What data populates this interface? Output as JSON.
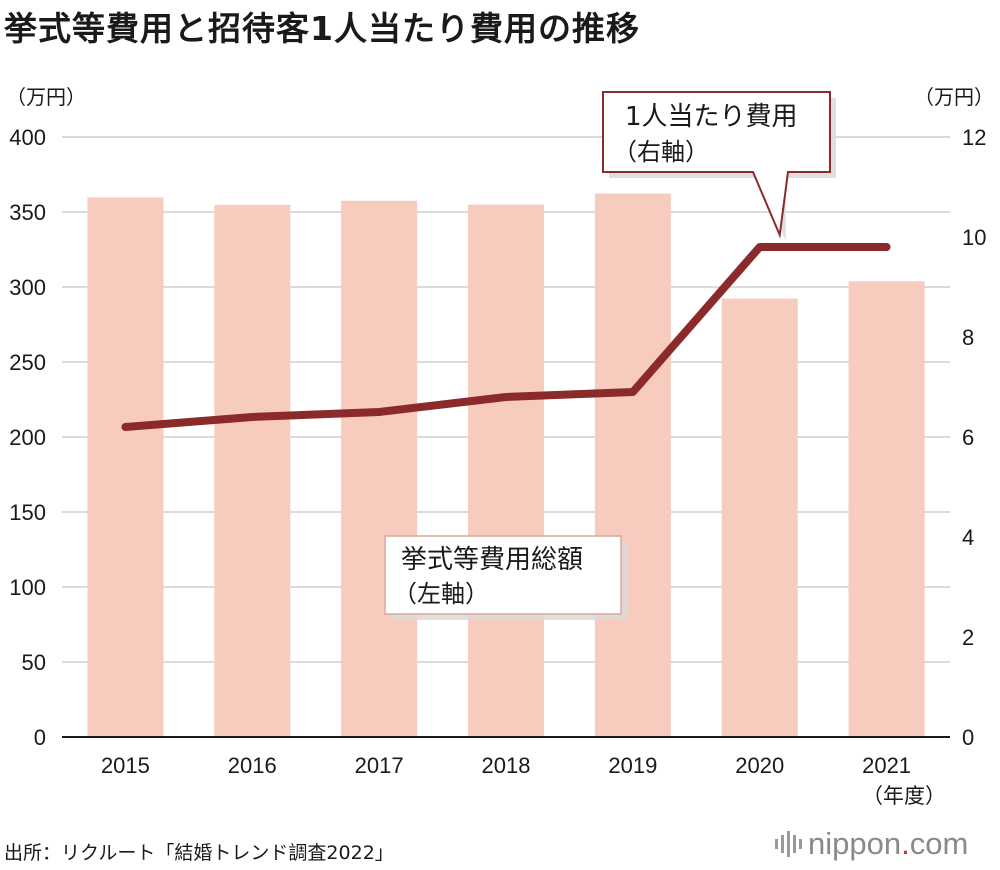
{
  "title": "挙式等費用と招待客1人当たり費用の推移",
  "source": "出所：リクルート「結婚トレンド調査2022」",
  "logo": {
    "name": "nippon",
    "dot": ".",
    "tld": "com"
  },
  "chart_data": {
    "type": "bar+line",
    "categories": [
      "2015",
      "2016",
      "2017",
      "2018",
      "2019",
      "2020",
      "2021"
    ],
    "xlabel": "（年度）",
    "left_axis": {
      "unit": "（万円）",
      "min": 0,
      "max": 400,
      "ticks": [
        0,
        50,
        100,
        150,
        200,
        250,
        300,
        350,
        400
      ]
    },
    "right_axis": {
      "unit": "（万円）",
      "min": 0,
      "max": 12,
      "ticks": [
        0,
        2,
        4,
        6,
        8,
        10,
        12
      ]
    },
    "grid": true,
    "series": [
      {
        "name": "挙式等費用総額",
        "axis_note": "（左軸）",
        "type": "bar",
        "axis": "left",
        "values": [
          359.7,
          354.8,
          357.5,
          354.9,
          362.3,
          292.3,
          303.8
        ],
        "color": "#f7cbbd"
      },
      {
        "name": "1人当たり費用",
        "axis_note": "（右軸）",
        "type": "line",
        "axis": "right",
        "values": [
          6.2,
          6.4,
          6.5,
          6.8,
          6.9,
          9.8,
          9.8
        ],
        "color": "#8b2a2a"
      }
    ]
  }
}
